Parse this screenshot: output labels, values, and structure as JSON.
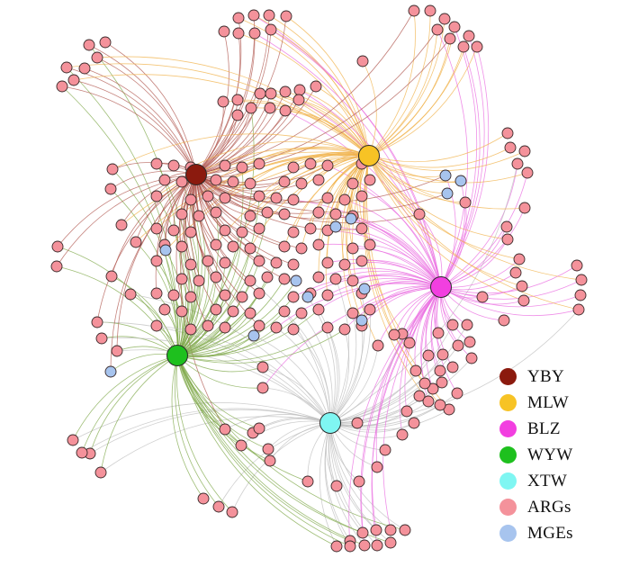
{
  "hubs": [
    {
      "key": "YBY",
      "label": "YBY",
      "color": "#8B1A0E"
    },
    {
      "key": "MLW",
      "label": "MLW",
      "color": "#F7C325"
    },
    {
      "key": "BLZ",
      "label": "BLZ",
      "color": "#F23FE0"
    },
    {
      "key": "WYW",
      "label": "WYW",
      "color": "#1EC01E"
    },
    {
      "key": "XTW",
      "label": "XTW",
      "color": "#7FF6F2"
    }
  ],
  "edge_colors": {
    "YBY": "#B0574F",
    "MLW": "#F0B24A",
    "BLZ": "#EA6BE0",
    "WYW": "#7FA84A",
    "XTW": "#BDBDBD"
  },
  "node_colors": {
    "ARGs": "#F4929B",
    "MGEs": "#A7C4EE"
  },
  "legend": [
    {
      "label": "YBY",
      "color": "#8B1A0E"
    },
    {
      "label": "MLW",
      "color": "#F7C325"
    },
    {
      "label": "BLZ",
      "color": "#F23FE0"
    },
    {
      "label": "WYW",
      "color": "#1EC01E"
    },
    {
      "label": "XTW",
      "color": "#7FF6F2"
    },
    {
      "label": "ARGs",
      "color": "#F4929B"
    },
    {
      "label": "MGEs",
      "color": "#A7C4EE"
    }
  ]
}
